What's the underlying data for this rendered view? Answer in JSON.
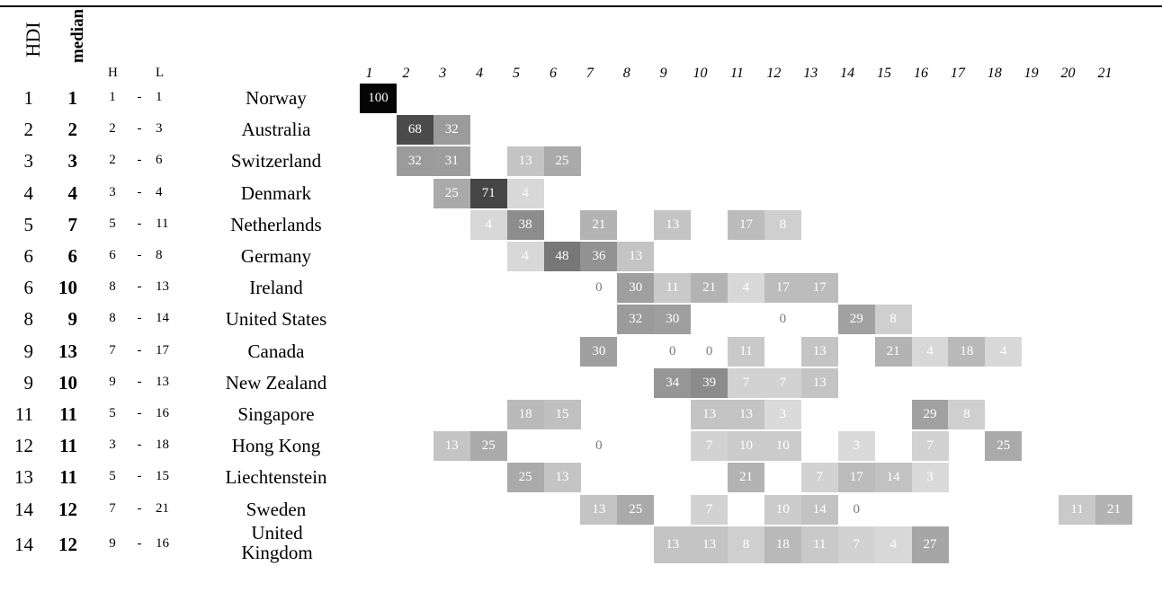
{
  "headers": {
    "hdi": "HDI",
    "median": "median",
    "h": "H",
    "l": "L"
  },
  "chart_data": {
    "type": "heatmap",
    "columns": [
      1,
      2,
      3,
      4,
      5,
      6,
      7,
      8,
      9,
      10,
      11,
      12,
      13,
      14,
      15,
      16,
      17,
      18,
      19,
      20,
      21
    ],
    "rows": [
      {
        "hdi": "1",
        "median": "1",
        "h": "1",
        "l": "1",
        "country": "Norway",
        "cells": {
          "1": 100
        }
      },
      {
        "hdi": "2",
        "median": "2",
        "h": "2",
        "l": "3",
        "country": "Australia",
        "cells": {
          "2": 68,
          "3": 32
        }
      },
      {
        "hdi": "3",
        "median": "3",
        "h": "2",
        "l": "6",
        "country": "Switzerland",
        "cells": {
          "2": 32,
          "3": 31,
          "5": 13,
          "6": 25
        }
      },
      {
        "hdi": "4",
        "median": "4",
        "h": "3",
        "l": "4",
        "country": "Denmark",
        "cells": {
          "3": 25,
          "4": 71,
          "5": 4
        }
      },
      {
        "hdi": "5",
        "median": "7",
        "h": "5",
        "l": "11",
        "country": "Netherlands",
        "cells": {
          "4": 4,
          "5": 38,
          "7": 21,
          "9": 13,
          "11": 17,
          "12": 8
        }
      },
      {
        "hdi": "6",
        "median": "6",
        "h": "6",
        "l": "8",
        "country": "Germany",
        "cells": {
          "5": 4,
          "6": 48,
          "7": 36,
          "8": 13
        }
      },
      {
        "hdi": "6",
        "median": "10",
        "h": "8",
        "l": "13",
        "country": "Ireland",
        "cells": {
          "7": 0,
          "8": 30,
          "9": 11,
          "10": 21,
          "11": 4,
          "12": 17,
          "13": 17
        }
      },
      {
        "hdi": "8",
        "median": "9",
        "h": "8",
        "l": "14",
        "country": "United States",
        "cells": {
          "8": 32,
          "9": 30,
          "12": 0,
          "14": 29,
          "15": 8
        }
      },
      {
        "hdi": "9",
        "median": "13",
        "h": "7",
        "l": "17",
        "country": "Canada",
        "cells": {
          "7": 30,
          "9": 0,
          "10": 0,
          "11": 11,
          "13": 13,
          "15": 21,
          "16": 4,
          "17": 18,
          "18": 4
        }
      },
      {
        "hdi": "9",
        "median": "10",
        "h": "9",
        "l": "13",
        "country": "New Zealand",
        "cells": {
          "9": 34,
          "10": 39,
          "11": 7,
          "12": 7,
          "13": 13
        }
      },
      {
        "hdi": "11",
        "median": "11",
        "h": "5",
        "l": "16",
        "country": "Singapore",
        "cells": {
          "5": 18,
          "6": 15,
          "10": 13,
          "11": 13,
          "12": 3,
          "16": 29,
          "17": 8
        }
      },
      {
        "hdi": "12",
        "median": "11",
        "h": "3",
        "l": "18",
        "country": "Hong Kong",
        "cells": {
          "3": 13,
          "4": 25,
          "7": 0,
          "10": 7,
          "11": 10,
          "12": 10,
          "14": 3,
          "16": 7,
          "18": 25
        }
      },
      {
        "hdi": "13",
        "median": "11",
        "h": "5",
        "l": "15",
        "country": "Liechtenstein",
        "cells": {
          "5": 25,
          "6": 13,
          "11": 21,
          "13": 7,
          "14": 17,
          "15": 14,
          "16": 3
        }
      },
      {
        "hdi": "14",
        "median": "12",
        "h": "7",
        "l": "21",
        "country": "Sweden",
        "cells": {
          "7": 13,
          "8": 25,
          "10": 7,
          "12": 10,
          "13": 14,
          "14": 0,
          "20": 11,
          "21": 21
        }
      },
      {
        "hdi": "14",
        "median": "12",
        "h": "9",
        "l": "16",
        "country": "United Kingdom",
        "cells": {
          "9": 13,
          "10": 13,
          "11": 8,
          "12": 18,
          "13": 11,
          "14": 7,
          "15": 4,
          "16": 27
        }
      }
    ],
    "colors": {
      "text_on_cell": "#ffffff",
      "dark_text": "#7a7a7a"
    }
  }
}
